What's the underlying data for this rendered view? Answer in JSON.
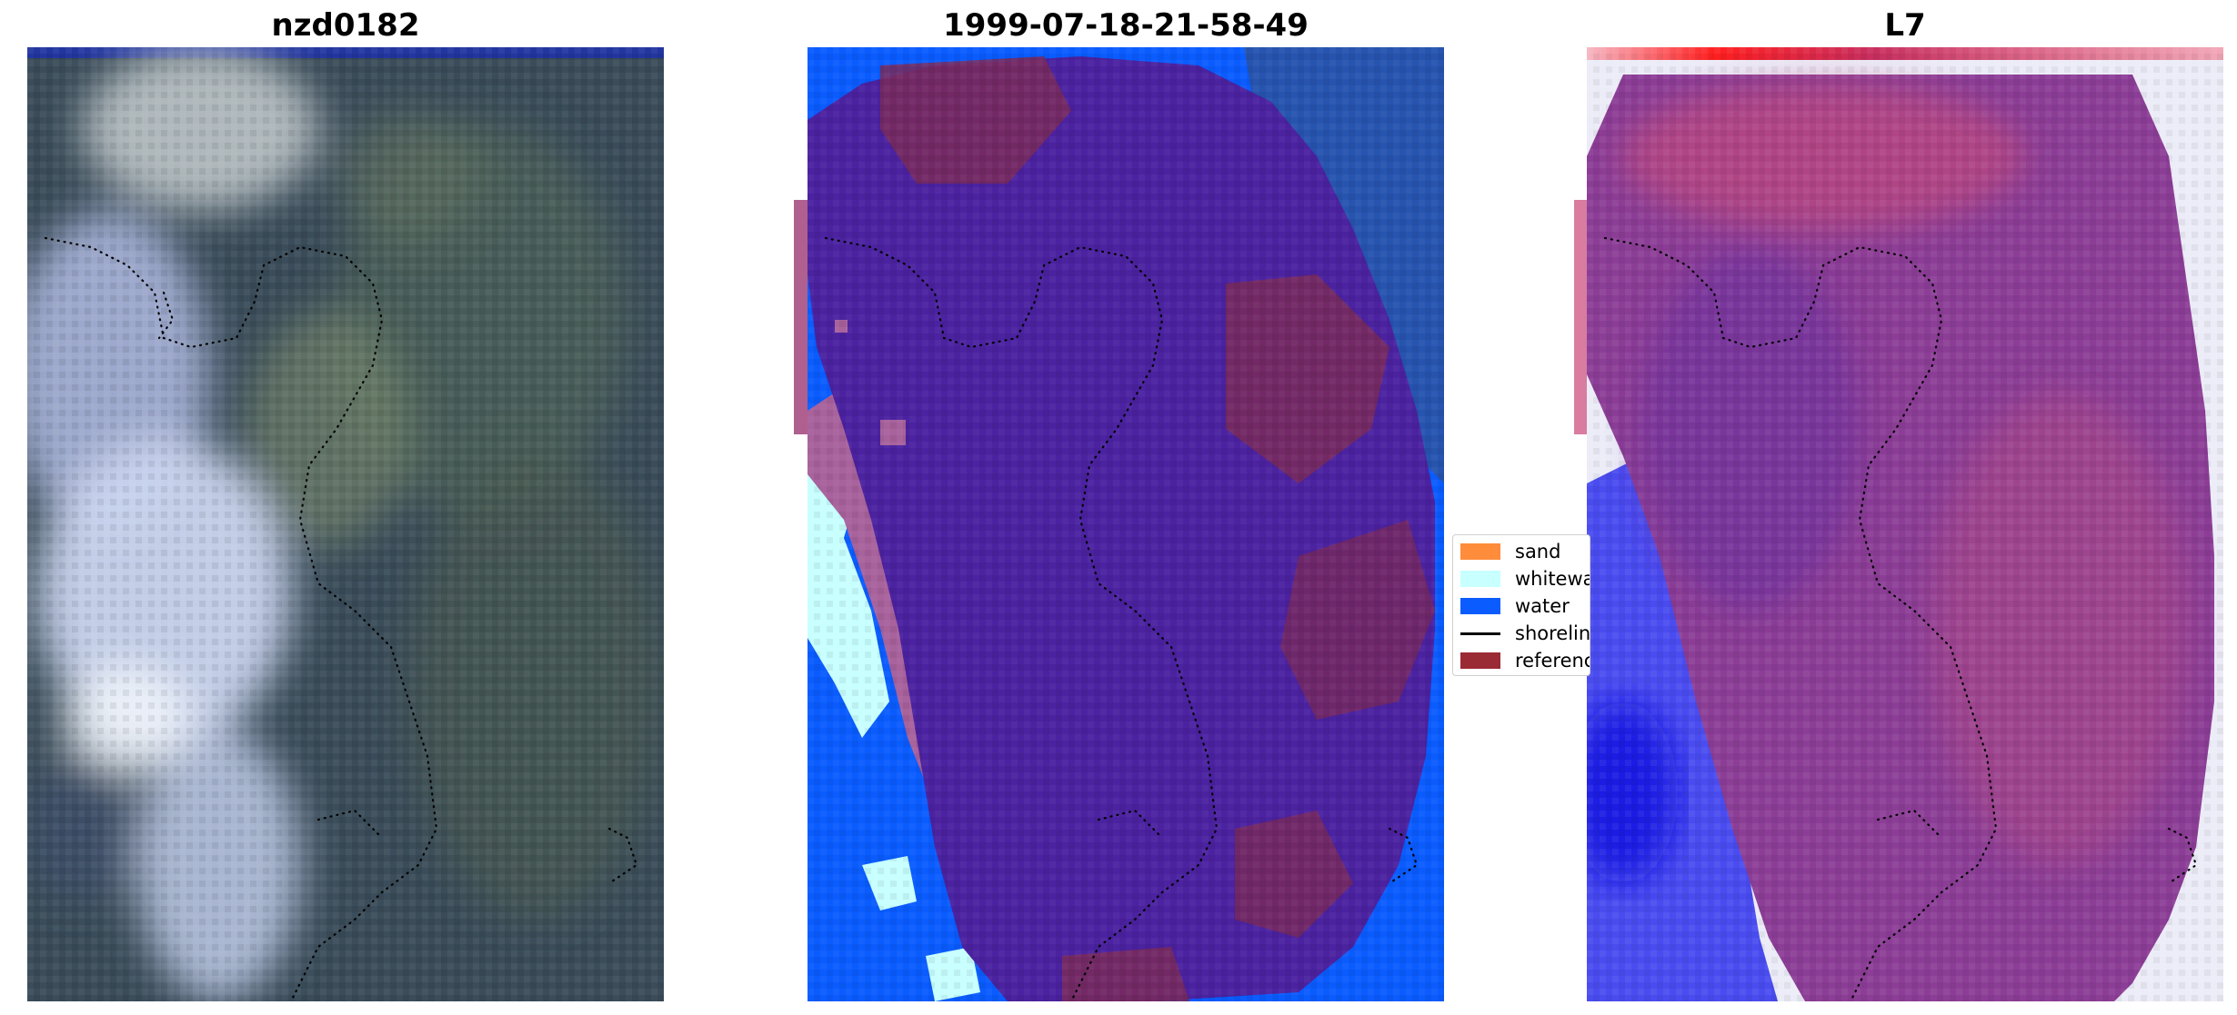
{
  "panels": [
    {
      "id": "rgb",
      "title": "nzd0182"
    },
    {
      "id": "classified",
      "title": "1999-07-18-21-58-49"
    },
    {
      "id": "index",
      "title": "L7"
    }
  ],
  "legend": {
    "items": [
      {
        "label": "sand",
        "color": "#ff8c3a",
        "kind": "patch"
      },
      {
        "label": "whitewater",
        "color": "#c8ffff",
        "kind": "patch"
      },
      {
        "label": "water",
        "color": "#0a5cff",
        "kind": "patch"
      },
      {
        "label": "shoreline",
        "color": "#000000",
        "kind": "line"
      },
      {
        "label": "reference",
        "color": "#9a2a34",
        "kind": "patch"
      }
    ]
  },
  "colors": {
    "rgb_dark": "#3b4d5a",
    "rgb_cloud": "#c5d2ea",
    "class_body": "#4b22a0",
    "class_pink": "#a8629c",
    "class_maroon": "#7a2a5a",
    "index_purple": "#8c3e96",
    "index_blue": "#4a4cf0",
    "index_white": "#ececf8",
    "index_red": "#e84858"
  }
}
